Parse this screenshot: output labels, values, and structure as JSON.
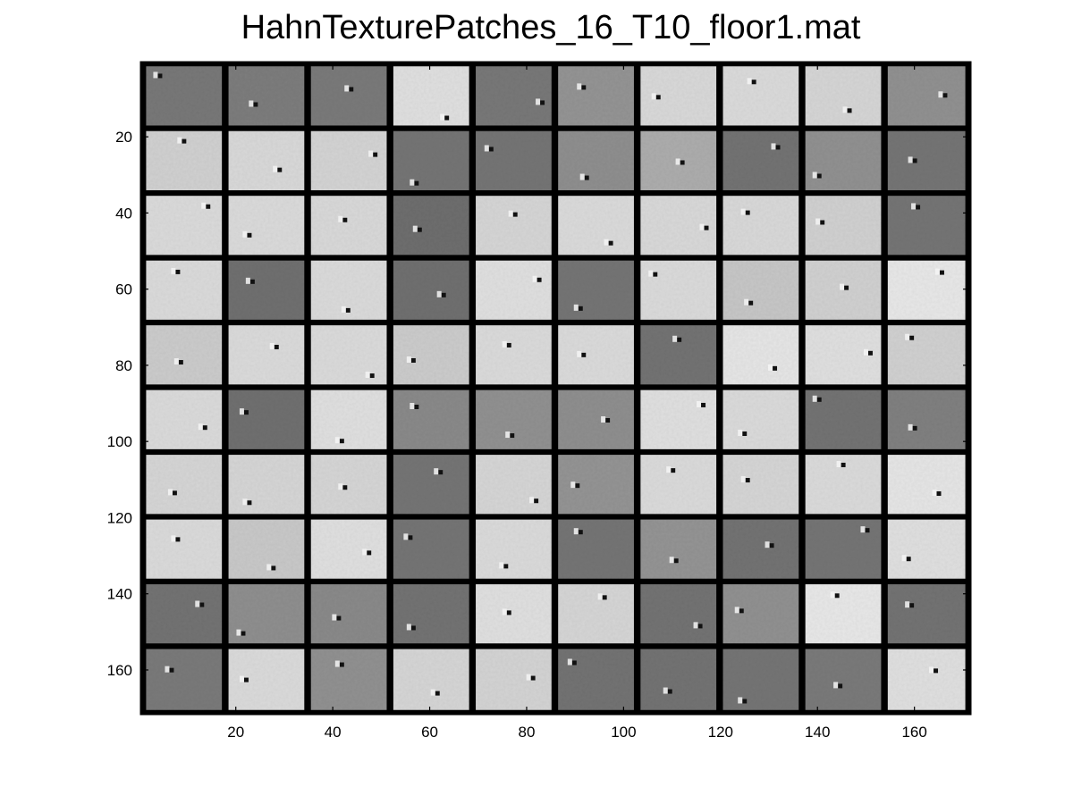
{
  "chart_data": {
    "type": "heatmap",
    "title": "HahnTexturePatches_16_T10_floor1.mat",
    "xlabel": "",
    "ylabel": "",
    "xlim": [
      0.5,
      171.5
    ],
    "ylim": [
      0.5,
      171.5
    ],
    "y_reversed": true,
    "colormap": "gray",
    "grid": false,
    "x_ticks": [
      20,
      40,
      60,
      80,
      100,
      120,
      140,
      160
    ],
    "y_ticks": [
      20,
      40,
      60,
      80,
      100,
      120,
      140,
      160
    ],
    "patch_grid": {
      "rows": 10,
      "cols": 10,
      "patch_size": 16,
      "separator_width": 1
    },
    "patch_gray_levels": [
      [
        0.47,
        0.49,
        0.48,
        0.88,
        0.47,
        0.58,
        0.85,
        0.86,
        0.84,
        0.57
      ],
      [
        0.82,
        0.85,
        0.83,
        0.46,
        0.46,
        0.56,
        0.68,
        0.45,
        0.57,
        0.46
      ],
      [
        0.86,
        0.86,
        0.85,
        0.43,
        0.84,
        0.86,
        0.85,
        0.85,
        0.82,
        0.46
      ],
      [
        0.86,
        0.44,
        0.86,
        0.44,
        0.88,
        0.46,
        0.86,
        0.78,
        0.82,
        0.91
      ],
      [
        0.8,
        0.86,
        0.86,
        0.8,
        0.86,
        0.86,
        0.45,
        0.9,
        0.88,
        0.82
      ],
      [
        0.86,
        0.44,
        0.88,
        0.54,
        0.57,
        0.56,
        0.88,
        0.86,
        0.45,
        0.5
      ],
      [
        0.84,
        0.84,
        0.84,
        0.46,
        0.84,
        0.58,
        0.86,
        0.84,
        0.86,
        0.9
      ],
      [
        0.86,
        0.79,
        0.88,
        0.46,
        0.86,
        0.46,
        0.58,
        0.45,
        0.46,
        0.88
      ],
      [
        0.45,
        0.56,
        0.54,
        0.45,
        0.88,
        0.84,
        0.45,
        0.57,
        0.91,
        0.45
      ],
      [
        0.48,
        0.86,
        0.57,
        0.84,
        0.83,
        0.45,
        0.45,
        0.46,
        0.48,
        0.88
      ]
    ]
  }
}
